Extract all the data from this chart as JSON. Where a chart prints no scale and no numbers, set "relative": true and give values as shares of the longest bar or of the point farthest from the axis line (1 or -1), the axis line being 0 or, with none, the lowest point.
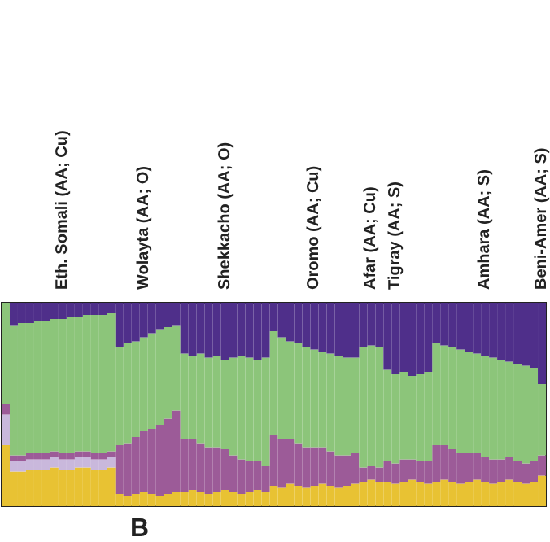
{
  "chart_data": {
    "type": "bar",
    "stacked": true,
    "relative": true,
    "grid": false,
    "categories": [
      null,
      null,
      null,
      null,
      null,
      null,
      null,
      "Eth. Somali (AA; Cu)",
      null,
      null,
      null,
      null,
      null,
      null,
      null,
      null,
      null,
      "Wolayta (AA; O)",
      null,
      null,
      null,
      null,
      null,
      null,
      null,
      null,
      null,
      "Shekkacho (AA; O)",
      null,
      null,
      null,
      null,
      null,
      null,
      null,
      null,
      null,
      null,
      "Oromo (AA; Cu)",
      null,
      null,
      null,
      null,
      null,
      null,
      "Afar (AA; Cu)",
      null,
      null,
      "Tigray (AA; S)",
      null,
      null,
      null,
      null,
      null,
      null,
      null,
      null,
      null,
      null,
      "Amhara (AA; S)",
      null,
      null,
      null,
      null,
      null,
      null,
      "Beni-Amer (AA; S)"
    ],
    "series": [
      {
        "color": "#e8c233",
        "values": [
          0.3,
          0.17,
          0.17,
          0.18,
          0.18,
          0.18,
          0.19,
          0.18,
          0.18,
          0.19,
          0.19,
          0.18,
          0.18,
          0.19,
          0.06,
          0.05,
          0.06,
          0.07,
          0.06,
          0.05,
          0.06,
          0.07,
          0.07,
          0.08,
          0.07,
          0.06,
          0.07,
          0.08,
          0.07,
          0.06,
          0.07,
          0.08,
          0.07,
          0.1,
          0.09,
          0.11,
          0.1,
          0.09,
          0.1,
          0.11,
          0.1,
          0.09,
          0.1,
          0.11,
          0.12,
          0.13,
          0.12,
          0.12,
          0.11,
          0.12,
          0.13,
          0.12,
          0.11,
          0.12,
          0.13,
          0.12,
          0.11,
          0.12,
          0.13,
          0.12,
          0.11,
          0.12,
          0.13,
          0.12,
          0.11,
          0.12,
          0.15
        ]
      },
      {
        "color": "#c9b8dc",
        "values": [
          0.15,
          0.05,
          0.05,
          0.05,
          0.05,
          0.05,
          0.05,
          0.05,
          0.05,
          0.05,
          0.05,
          0.05,
          0.05,
          0.05,
          0,
          0,
          0,
          0,
          0,
          0,
          0,
          0,
          0,
          0,
          0,
          0,
          0,
          0,
          0,
          0,
          0,
          0,
          0,
          0,
          0,
          0,
          0,
          0,
          0,
          0,
          0,
          0,
          0,
          0,
          0,
          0,
          0,
          0,
          0,
          0,
          0,
          0,
          0,
          0,
          0,
          0,
          0,
          0,
          0,
          0,
          0,
          0,
          0,
          0,
          0,
          0,
          0
        ]
      },
      {
        "color": "#9c5b98",
        "values": [
          0.05,
          0.03,
          0.03,
          0.03,
          0.03,
          0.03,
          0.03,
          0.03,
          0.03,
          0.03,
          0.03,
          0.03,
          0.03,
          0.03,
          0.24,
          0.26,
          0.28,
          0.3,
          0.32,
          0.35,
          0.37,
          0.4,
          0.26,
          0.25,
          0.24,
          0.23,
          0.22,
          0.2,
          0.18,
          0.17,
          0.15,
          0.14,
          0.13,
          0.25,
          0.24,
          0.22,
          0.21,
          0.2,
          0.19,
          0.18,
          0.17,
          0.16,
          0.15,
          0.15,
          0.07,
          0.07,
          0.07,
          0.1,
          0.1,
          0.11,
          0.1,
          0.1,
          0.11,
          0.18,
          0.17,
          0.16,
          0.15,
          0.14,
          0.13,
          0.12,
          0.12,
          0.11,
          0.11,
          0.1,
          0.1,
          0.1,
          0.1
        ]
      },
      {
        "color": "#8cc57a",
        "values": [
          0.5,
          0.64,
          0.65,
          0.64,
          0.65,
          0.65,
          0.65,
          0.66,
          0.67,
          0.66,
          0.67,
          0.68,
          0.68,
          0.68,
          0.48,
          0.49,
          0.47,
          0.46,
          0.47,
          0.47,
          0.45,
          0.42,
          0.42,
          0.41,
          0.44,
          0.44,
          0.45,
          0.44,
          0.48,
          0.51,
          0.51,
          0.5,
          0.53,
          0.51,
          0.5,
          0.48,
          0.49,
          0.49,
          0.48,
          0.47,
          0.48,
          0.49,
          0.48,
          0.47,
          0.59,
          0.59,
          0.59,
          0.45,
          0.44,
          0.43,
          0.41,
          0.43,
          0.44,
          0.5,
          0.49,
          0.5,
          0.51,
          0.5,
          0.49,
          0.5,
          0.5,
          0.49,
          0.47,
          0.48,
          0.48,
          0.46,
          0.35
        ]
      },
      {
        "color": "#4f2f8a",
        "values": [
          0,
          0.11,
          0.1,
          0.1,
          0.09,
          0.09,
          0.08,
          0.08,
          0.07,
          0.07,
          0.06,
          0.06,
          0.06,
          0.05,
          0.22,
          0.2,
          0.19,
          0.17,
          0.15,
          0.13,
          0.12,
          0.11,
          0.25,
          0.26,
          0.25,
          0.27,
          0.26,
          0.28,
          0.27,
          0.26,
          0.27,
          0.28,
          0.27,
          0.14,
          0.17,
          0.19,
          0.2,
          0.22,
          0.23,
          0.24,
          0.25,
          0.26,
          0.27,
          0.27,
          0.22,
          0.21,
          0.22,
          0.33,
          0.35,
          0.34,
          0.36,
          0.35,
          0.34,
          0.2,
          0.21,
          0.22,
          0.23,
          0.24,
          0.25,
          0.26,
          0.27,
          0.28,
          0.29,
          0.3,
          0.31,
          0.32,
          0.4
        ]
      }
    ],
    "annotations": [
      "B"
    ]
  }
}
